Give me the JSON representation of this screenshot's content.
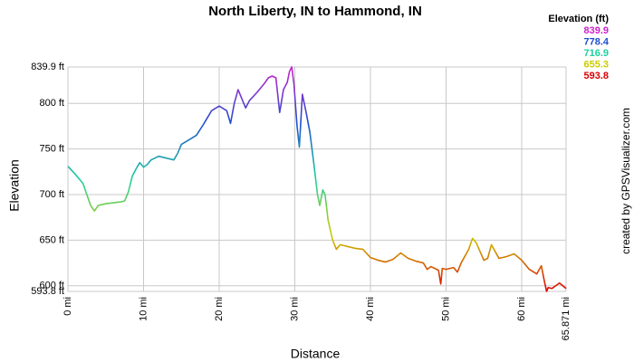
{
  "chart_data": {
    "type": "line",
    "title": "North Liberty, IN to Hammond, IN",
    "x_label": "Distance",
    "y_label": "Elevation",
    "credit": "created by GPSVisualizer.com",
    "legend": {
      "title": "Elevation (ft)",
      "items": [
        {
          "value": 839.9,
          "color": "#cc22cc"
        },
        {
          "value": 778.4,
          "color": "#1f4fcf"
        },
        {
          "value": 716.9,
          "color": "#1fd0a0"
        },
        {
          "value": 655.3,
          "color": "#cccc00"
        },
        {
          "value": 593.8,
          "color": "#dd0000"
        }
      ]
    },
    "xlim": [
      0,
      65.871
    ],
    "ylim": [
      593.8,
      839.9
    ],
    "grid": true,
    "xticks": [
      {
        "value": 0,
        "label": "0 mi"
      },
      {
        "value": 10,
        "label": "10 mi"
      },
      {
        "value": 20,
        "label": "20 mi"
      },
      {
        "value": 30,
        "label": "30 mi"
      },
      {
        "value": 40,
        "label": "40 mi"
      },
      {
        "value": 50,
        "label": "50 mi"
      },
      {
        "value": 60,
        "label": "60 mi"
      },
      {
        "value": 65.871,
        "label": "65.871 mi"
      }
    ],
    "yticks": [
      {
        "value": 593.8,
        "label": "593.8 ft"
      },
      {
        "value": 600,
        "label": "600 ft"
      },
      {
        "value": 650,
        "label": "650 ft"
      },
      {
        "value": 700,
        "label": "700 ft"
      },
      {
        "value": 750,
        "label": "750 ft"
      },
      {
        "value": 800,
        "label": "800 ft"
      },
      {
        "value": 839.9,
        "label": "839.9 ft"
      }
    ],
    "x": [
      0,
      1,
      2,
      2.5,
      3,
      3.5,
      4,
      5,
      6,
      7,
      7.5,
      8,
      8.5,
      9,
      9.5,
      10,
      10.5,
      11,
      12,
      13,
      14,
      14.5,
      15,
      16,
      17,
      18,
      19,
      20,
      21,
      21.5,
      22,
      22.5,
      23,
      23.5,
      24,
      25,
      26,
      26.5,
      27,
      27.5,
      28,
      28.5,
      29,
      29.3,
      29.6,
      29.9,
      30.3,
      30.6,
      31,
      31.5,
      32,
      32.5,
      33,
      33.3,
      33.7,
      34,
      34.4,
      35,
      35.5,
      36,
      37,
      38,
      39,
      40,
      41,
      42,
      43,
      44,
      45,
      46,
      47,
      47.5,
      48,
      49,
      49.3,
      49.5,
      50,
      51,
      51.5,
      52,
      53,
      53.5,
      54,
      55,
      55.5,
      56,
      57,
      58,
      59,
      60,
      61,
      62,
      62.6,
      63,
      63.3,
      63.5,
      64,
      65,
      65.871
    ],
    "values": [
      731,
      722,
      712,
      700,
      688,
      682,
      688,
      690,
      691,
      692,
      693,
      703,
      720,
      728,
      735,
      730,
      733,
      738,
      742,
      740,
      738,
      745,
      755,
      760,
      765,
      778,
      792,
      797,
      792,
      778,
      800,
      815,
      805,
      795,
      803,
      812,
      822,
      828,
      830,
      828,
      790,
      815,
      823,
      835,
      839.9,
      820,
      775,
      752,
      810,
      790,
      768,
      735,
      700,
      688,
      705,
      700,
      672,
      650,
      640,
      645,
      643,
      641,
      640,
      631,
      628,
      626,
      629,
      636,
      630,
      627,
      625,
      618,
      621,
      617,
      602,
      619,
      618,
      620,
      615,
      625,
      640,
      652,
      647,
      628,
      630,
      645,
      630,
      632,
      635,
      628,
      618,
      613,
      622,
      605,
      593.8,
      598,
      597,
      603,
      597
    ]
  }
}
